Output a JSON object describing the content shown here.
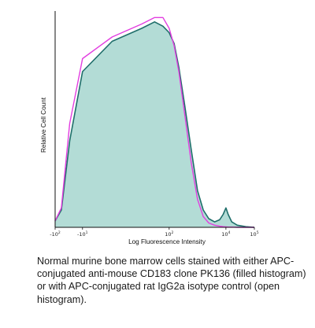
{
  "chart_data": {
    "type": "area",
    "xlabel": "Log Fluorescence Intensity",
    "ylabel": "Relative Cell Count",
    "xscale": "biexponential",
    "xlim": [
      -100,
      100000
    ],
    "ylim": [
      0,
      100
    ],
    "grid": false,
    "x_ticks": [
      {
        "value": -100,
        "base": "-10",
        "exp": "2"
      },
      {
        "value": -10,
        "base": "-10",
        "exp": "1"
      },
      {
        "value": 100,
        "base": "10",
        "exp": "2"
      },
      {
        "value": 10000,
        "base": "10",
        "exp": "4"
      },
      {
        "value": 100000,
        "base": "10",
        "exp": "5"
      }
    ],
    "series": [
      {
        "role": "filled",
        "fill": "#b3dcd6",
        "color": "#1f6e6a",
        "x": [
          -100,
          -60,
          -30,
          -10,
          0,
          10,
          30,
          60,
          100,
          150,
          220,
          350,
          600,
          1000,
          1600,
          2500,
          4000,
          6000,
          8000,
          10000,
          12000,
          16000,
          25000,
          50000,
          100000
        ],
        "values": [
          3,
          8,
          40,
          72,
          86,
          92,
          95,
          93,
          90,
          85,
          74,
          57,
          36,
          17,
          8,
          4,
          2.5,
          3.5,
          6,
          9,
          6,
          2.5,
          1,
          0.3,
          0
        ]
      },
      {
        "role": "open",
        "color": "#e23ee0",
        "x": [
          -100,
          -60,
          -30,
          -10,
          0,
          10,
          30,
          60,
          100,
          150,
          220,
          350,
          600,
          1000,
          1600,
          2500,
          4000,
          6000,
          8000,
          10000,
          12000,
          16000,
          25000,
          50000,
          100000
        ],
        "values": [
          3,
          9,
          48,
          78,
          88,
          94,
          97,
          97,
          92,
          84,
          72,
          53,
          30,
          13,
          5,
          2,
          1,
          0.5,
          0.3,
          0.2,
          0.1,
          0.1,
          0,
          0,
          0
        ]
      }
    ]
  },
  "caption": "Normal murine bone marrow cells stained with either APC-conjugated anti-mouse CD183 clone PK136 (filled histogram) or with APC-conjugated rat IgG2a isotype control (open histogram)."
}
